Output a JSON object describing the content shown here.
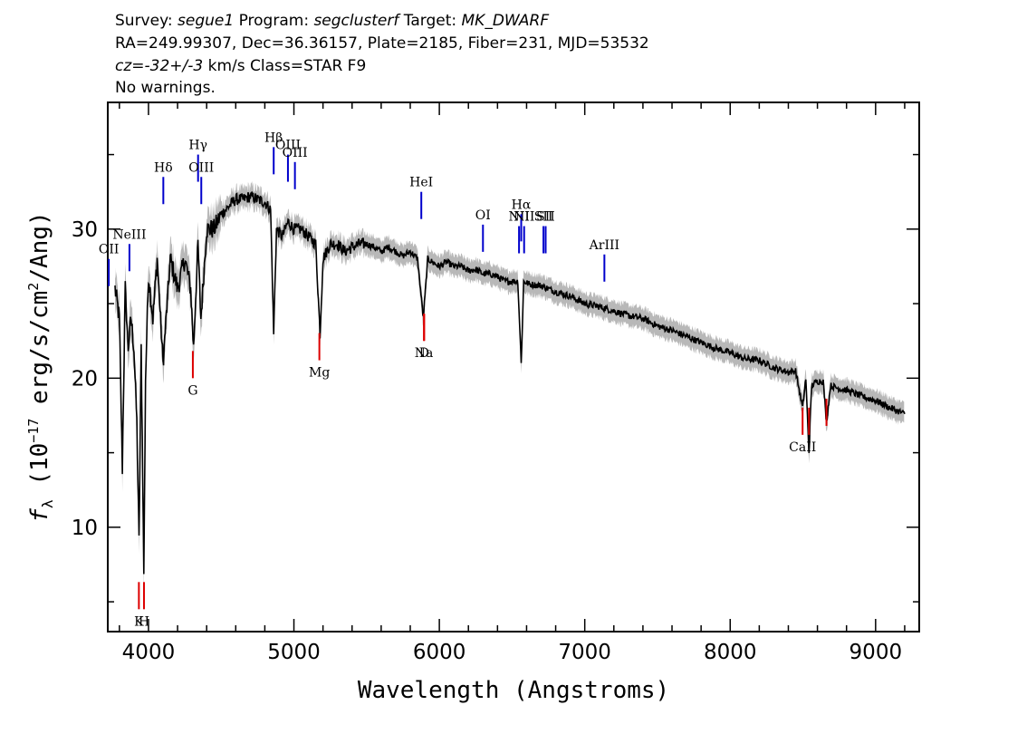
{
  "header": {
    "line1": [
      {
        "text": "Survey: ",
        "italic": false
      },
      {
        "text": "segue1",
        "italic": true
      },
      {
        "text": " Program: ",
        "italic": false
      },
      {
        "text": "segclusterf",
        "italic": true
      },
      {
        "text": " Target: ",
        "italic": false
      },
      {
        "text": "MK_DWARF",
        "italic": true
      }
    ],
    "line2": "RA=249.99307, Dec=36.36157, Plate=2185, Fiber=231, MJD=53532",
    "line3": [
      {
        "text": "cz=-32+/-3",
        "italic": true
      },
      {
        "text": " km/s Class=STAR F9",
        "italic": false
      }
    ],
    "line4": "No warnings."
  },
  "chart_data": {
    "type": "line",
    "xlabel": "Wavelength (Angstroms)",
    "ylabel_parts": {
      "symbol": "f",
      "sub": "λ",
      "pre": " (10",
      "exp": "−17",
      "mid": " erg/s/cm",
      "exp2": "2",
      "post": "/Ang)"
    },
    "xlim": [
      3720,
      9300
    ],
    "ylim": [
      3,
      38.5
    ],
    "xticks": [
      4000,
      5000,
      6000,
      7000,
      8000,
      9000
    ],
    "yticks": [
      10,
      20,
      30
    ],
    "colors": {
      "spectrum": "#000000",
      "error": "#b0b0b0",
      "emission": "#0000cc",
      "absorption": "#dd0000"
    },
    "series": [
      {
        "x": [
          3770,
          3800,
          3820,
          3840,
          3860,
          3880,
          3900,
          3920,
          3935,
          3950,
          3968,
          3980,
          4000,
          4030,
          4060,
          4100,
          4150,
          4200,
          4250,
          4290,
          4310,
          4340,
          4360,
          4400,
          4450,
          4500,
          4550,
          4600,
          4650,
          4700,
          4750,
          4800,
          4840,
          4861,
          4880,
          4920,
          4960,
          5000,
          5050,
          5100,
          5150,
          5180,
          5200,
          5250,
          5300,
          5350,
          5400,
          5450,
          5500,
          5550,
          5600,
          5650,
          5700,
          5750,
          5800,
          5850,
          5890,
          5920,
          5950,
          6000,
          6050,
          6100,
          6150,
          6200,
          6250,
          6300,
          6350,
          6400,
          6450,
          6500,
          6540,
          6563,
          6580,
          6620,
          6700,
          6800,
          6900,
          7000,
          7100,
          7200,
          7300,
          7400,
          7500,
          7600,
          7700,
          7800,
          7900,
          8000,
          8100,
          8200,
          8300,
          8400,
          8450,
          8498,
          8520,
          8542,
          8560,
          8600,
          8640,
          8662,
          8690,
          8750,
          8800,
          8900,
          9000,
          9100,
          9200
        ],
        "y": [
          26,
          24,
          14,
          26,
          22,
          24,
          22,
          17,
          9,
          22,
          7,
          20,
          27,
          24,
          28,
          21,
          28,
          26,
          28,
          26,
          22,
          29,
          24,
          30,
          30,
          31,
          31.5,
          32,
          32,
          32.2,
          32,
          31.8,
          31.3,
          23,
          30,
          29.5,
          30.5,
          30,
          30,
          29.5,
          29,
          23,
          28,
          29,
          29,
          28.5,
          28.8,
          29,
          29,
          28.8,
          28.5,
          28.8,
          28.5,
          28.2,
          28.5,
          28,
          24,
          28,
          27.8,
          27.5,
          27.8,
          27.5,
          27.5,
          27.2,
          27.3,
          27,
          27,
          26.8,
          26.5,
          26.5,
          26.5,
          21,
          26.5,
          26.3,
          26.2,
          25.8,
          25.5,
          25,
          24.8,
          24.5,
          24.2,
          24,
          23.5,
          23.2,
          22.8,
          22.4,
          22,
          21.7,
          21.3,
          21.2,
          20.7,
          20.4,
          20.5,
          18,
          20,
          15,
          19.5,
          19.8,
          19.8,
          17,
          19.5,
          19.3,
          19.2,
          18.8,
          18.5,
          18,
          17.6
        ]
      }
    ],
    "emission_lines": [
      {
        "label": "OII",
        "wl": 3727,
        "y": 28
      },
      {
        "label": "NeIII",
        "wl": 3869,
        "y": 29
      },
      {
        "label": "Hδ",
        "wl": 4102,
        "y": 33.5
      },
      {
        "label": "Hγ",
        "wl": 4341,
        "y": 35
      },
      {
        "label": "OIII",
        "wl": 4363,
        "y": 33.5
      },
      {
        "label": "Hβ",
        "wl": 4861,
        "y": 35.5
      },
      {
        "label": "OIII",
        "wl": 4959,
        "y": 35
      },
      {
        "label": "OIII",
        "wl": 5007,
        "y": 34.5
      },
      {
        "label": "HeI",
        "wl": 5876,
        "y": 32.5
      },
      {
        "label": "OI",
        "wl": 6300,
        "y": 30.3
      },
      {
        "label": "NII",
        "wl": 6548,
        "y": 30.2
      },
      {
        "label": "Hα",
        "wl": 6563,
        "y": 31
      },
      {
        "label": "NII",
        "wl": 6583,
        "y": 30.2
      },
      {
        "label": "SII",
        "wl": 6716,
        "y": 30.2
      },
      {
        "label": "SII",
        "wl": 6731,
        "y": 30.2
      },
      {
        "label": "ArIII",
        "wl": 7135,
        "y": 28.3
      }
    ],
    "absorption_lines": [
      {
        "label": "K",
        "wl": 3934,
        "y": 4.5
      },
      {
        "label": "H",
        "wl": 3969,
        "y": 4.5
      },
      {
        "label": "G",
        "wl": 4305,
        "y": 20
      },
      {
        "label": "Mg",
        "wl": 5175,
        "y": 21.2
      },
      {
        "label": "Na",
        "wl": 5894,
        "y": 22.5
      },
      {
        "label": "D",
        "wl": 5896,
        "y": 22.5
      },
      {
        "label": "CaII",
        "wl": 8498,
        "y": 16.2
      },
      {
        "label": "",
        "wl": 8542,
        "y": 16.2
      },
      {
        "label": "",
        "wl": 8662,
        "y": 16.8
      }
    ]
  }
}
